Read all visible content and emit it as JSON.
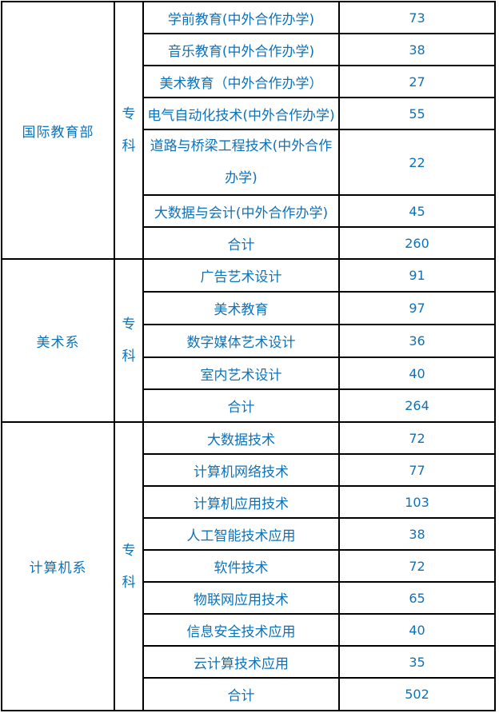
{
  "colors": {
    "text": "#0e72b9",
    "border": "#000000",
    "background": "#ffffff"
  },
  "table": {
    "sections": [
      {
        "department": "国际教育部",
        "level": "专科",
        "rows": [
          {
            "program": "学前教育(中外合作办学)",
            "count": 73
          },
          {
            "program": "音乐教育(中外合作办学)",
            "count": 38
          },
          {
            "program": "美术教育（中外合作办学）",
            "count": 27
          },
          {
            "program": "电气自动化技术(中外合作办学)",
            "count": 55
          },
          {
            "program": "道路与桥梁工程技术(中外合作\n办学)",
            "count": 22
          },
          {
            "program": "大数据与会计(中外合作办学)",
            "count": 45
          },
          {
            "program": "合计",
            "count": 260
          }
        ]
      },
      {
        "department": "美术系",
        "level": "专科",
        "rows": [
          {
            "program": "广告艺术设计",
            "count": 91
          },
          {
            "program": "美术教育",
            "count": 97
          },
          {
            "program": "数字媒体艺术设计",
            "count": 36
          },
          {
            "program": "室内艺术设计",
            "count": 40
          },
          {
            "program": "合计",
            "count": 264
          }
        ]
      },
      {
        "department": "计算机系",
        "level": "专科",
        "rows": [
          {
            "program": "大数据技术",
            "count": 72
          },
          {
            "program": "计算机网络技术",
            "count": 77
          },
          {
            "program": "计算机应用技术",
            "count": 103
          },
          {
            "program": "人工智能技术应用",
            "count": 38
          },
          {
            "program": "软件技术",
            "count": 72
          },
          {
            "program": "物联网应用技术",
            "count": 65
          },
          {
            "program": "信息安全技术应用",
            "count": 40
          },
          {
            "program": "云计算技术应用",
            "count": 35
          },
          {
            "program": "合计",
            "count": 502
          }
        ]
      }
    ]
  }
}
